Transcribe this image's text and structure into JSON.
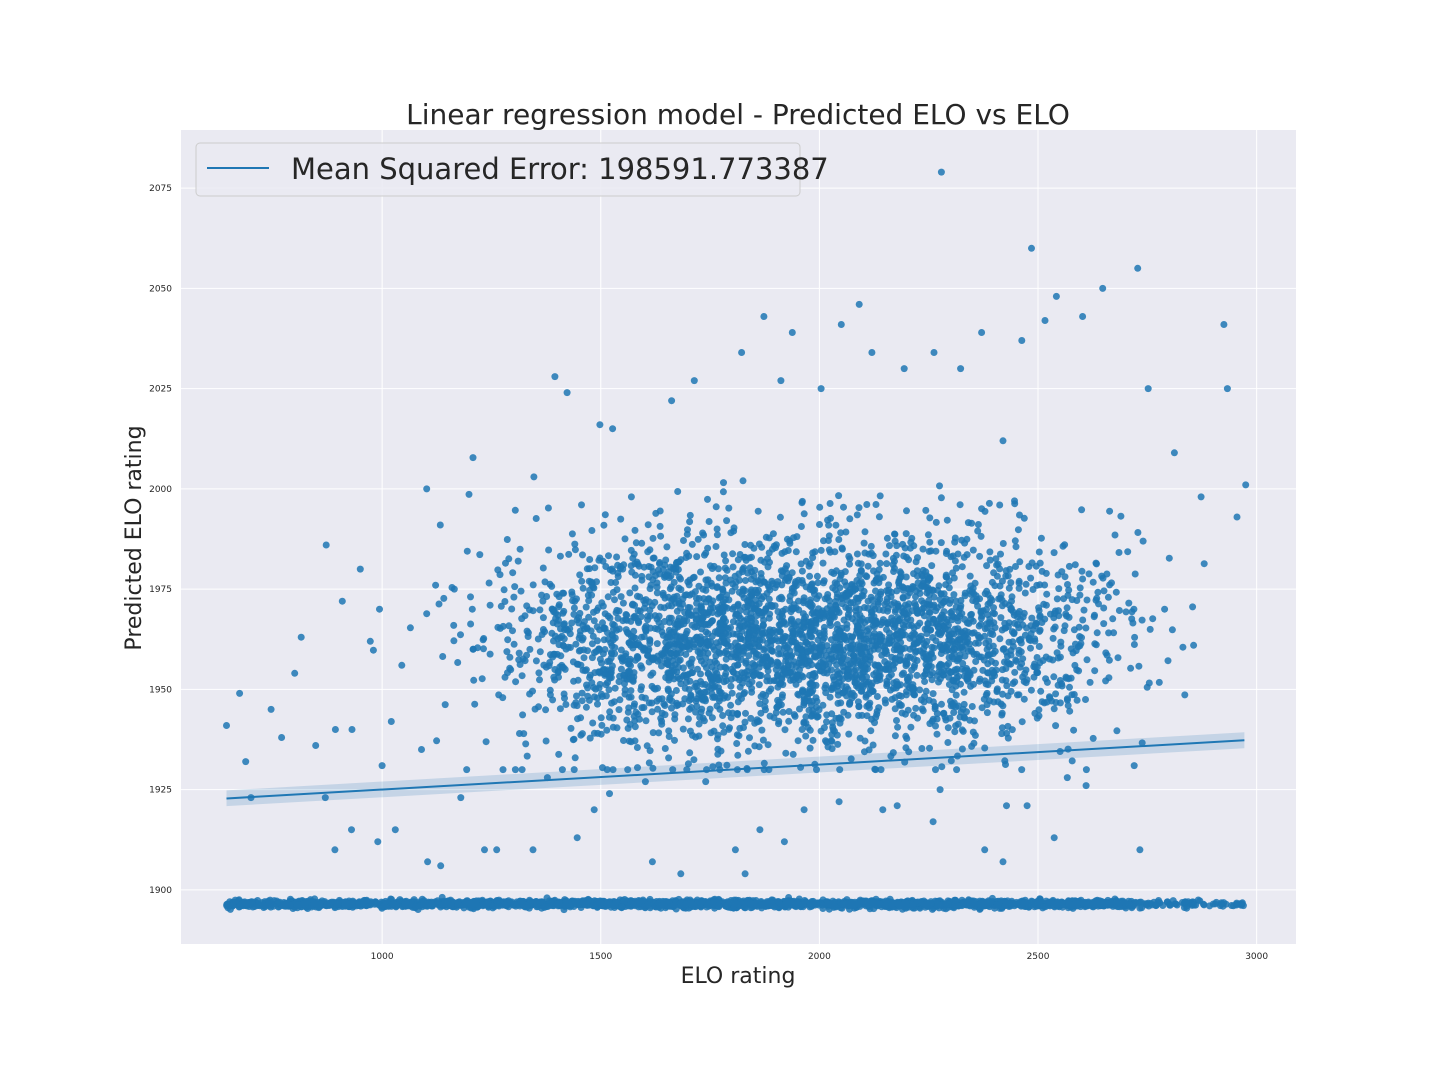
{
  "chart_data": {
    "type": "scatter",
    "title": "Linear regression model - Predicted ELO vs ELO",
    "xlabel": "ELO rating",
    "ylabel": "Predicted ELO rating",
    "xlim": [
      540,
      3090
    ],
    "ylim": [
      1886.5,
      2089.5
    ],
    "x_ticks": [
      1000,
      1500,
      2000,
      2500,
      3000
    ],
    "x_tick_labels": [
      "1000",
      "1500",
      "2000",
      "2500",
      "3000"
    ],
    "y_ticks": [
      1900,
      1925,
      1950,
      1975,
      2000,
      2025,
      2050,
      2075
    ],
    "y_tick_labels": [
      "1900",
      "1925",
      "1950",
      "1975",
      "2000",
      "2025",
      "2050",
      "2075"
    ],
    "grid": true,
    "legend": {
      "placement": "top-left",
      "entries": [
        "Mean Squared Error: 198591.773387"
      ]
    },
    "series": [
      {
        "kind": "scatter",
        "color": "#1f77b4",
        "points": [
          [
            644,
            1941
          ],
          [
            674,
            1949
          ],
          [
            688,
            1932
          ],
          [
            746,
            1945
          ],
          [
            770,
            1938
          ],
          [
            800,
            1954
          ],
          [
            815,
            1963
          ],
          [
            848,
            1936
          ],
          [
            872,
            1986
          ],
          [
            893,
            1940
          ],
          [
            909,
            1972
          ],
          [
            931,
            1940
          ],
          [
            950,
            1980
          ],
          [
            973,
            1962
          ],
          [
            994,
            1970
          ],
          [
            1021,
            1942
          ],
          [
            1045,
            1956
          ],
          [
            1090,
            1935
          ],
          [
            1102,
            2000
          ],
          [
            1133,
            1991
          ],
          [
            1165,
            1975
          ],
          [
            1208,
            1960
          ],
          [
            1247,
            1971
          ],
          [
            1281,
            1953
          ],
          [
            1320,
            1930
          ],
          [
            1347,
            2003
          ],
          [
            1395,
            2028
          ],
          [
            1423,
            2024
          ],
          [
            1456,
            1996
          ],
          [
            1498,
            2016
          ],
          [
            1527,
            2015
          ],
          [
            1570,
            1998
          ],
          [
            1630,
            1965
          ],
          [
            1662,
            2022
          ],
          [
            1714,
            2027
          ],
          [
            1766,
            1990
          ],
          [
            1822,
            2034
          ],
          [
            1873,
            2043
          ],
          [
            1912,
            2027
          ],
          [
            1938,
            2039
          ],
          [
            2004,
            2025
          ],
          [
            2050,
            2041
          ],
          [
            2091,
            2046
          ],
          [
            2120,
            2034
          ],
          [
            2194,
            2030
          ],
          [
            2262,
            2034
          ],
          [
            2279,
            2079
          ],
          [
            2323,
            2030
          ],
          [
            2371,
            2039
          ],
          [
            2420,
            2012
          ],
          [
            2463,
            2037
          ],
          [
            2485,
            2060
          ],
          [
            2516,
            2042
          ],
          [
            2542,
            2048
          ],
          [
            2602,
            2043
          ],
          [
            2648,
            2050
          ],
          [
            2728,
            2055
          ],
          [
            2752,
            2025
          ],
          [
            2812,
            2009
          ],
          [
            2873,
            1998
          ],
          [
            2925,
            2041
          ],
          [
            2933,
            2025
          ],
          [
            2955,
            1993
          ],
          [
            2975,
            2001
          ],
          [
            892,
            1910
          ],
          [
            930,
            1915
          ],
          [
            990,
            1912
          ],
          [
            1030,
            1915
          ],
          [
            1104,
            1907
          ],
          [
            1134,
            1906
          ],
          [
            1234,
            1910
          ],
          [
            1262,
            1910
          ],
          [
            1345,
            1910
          ],
          [
            1446,
            1913
          ],
          [
            1618,
            1907
          ],
          [
            1683,
            1904
          ],
          [
            1808,
            1910
          ],
          [
            1830,
            1904
          ],
          [
            1864,
            1915
          ],
          [
            1920,
            1912
          ],
          [
            2178,
            1921
          ],
          [
            2260,
            1917
          ],
          [
            2378,
            1910
          ],
          [
            2420,
            1907
          ],
          [
            2475,
            1921
          ],
          [
            2537,
            1913
          ],
          [
            2720,
            1931
          ],
          [
            2733,
            1910
          ],
          [
            700,
            1923
          ],
          [
            870,
            1923
          ],
          [
            1000,
            1931
          ],
          [
            1180,
            1923
          ],
          [
            1378,
            1928
          ],
          [
            1485,
            1920
          ],
          [
            1520,
            1924
          ],
          [
            1602,
            1927
          ],
          [
            1740,
            1927
          ],
          [
            1965,
            1920
          ],
          [
            2045,
            1922
          ],
          [
            2145,
            1920
          ],
          [
            2276,
            1925
          ],
          [
            2428,
            1921
          ],
          [
            2567,
            1928
          ],
          [
            2610,
            1926
          ]
        ]
      },
      {
        "kind": "scatter_cluster",
        "note": "dense point cloud",
        "x_range": [
          760,
          2880
        ],
        "y_range": [
          1908,
          2046
        ],
        "center_y": 1962,
        "approx_count": 3400
      },
      {
        "kind": "scatter_band",
        "note": "dense band of points near the bottom",
        "x_range": [
          644,
          2970
        ],
        "y_values_approx": 1896.5,
        "approx_count": 2600
      },
      {
        "kind": "line",
        "name": "Mean Squared Error: 198591.773387",
        "color": "#1f77b4",
        "x": [
          644,
          2972
        ],
        "y": [
          1922.8,
          1937.3
        ],
        "ci_lower": [
          1920.9,
          1935.3
        ],
        "ci_upper": [
          1924.8,
          1939.3
        ]
      }
    ]
  }
}
